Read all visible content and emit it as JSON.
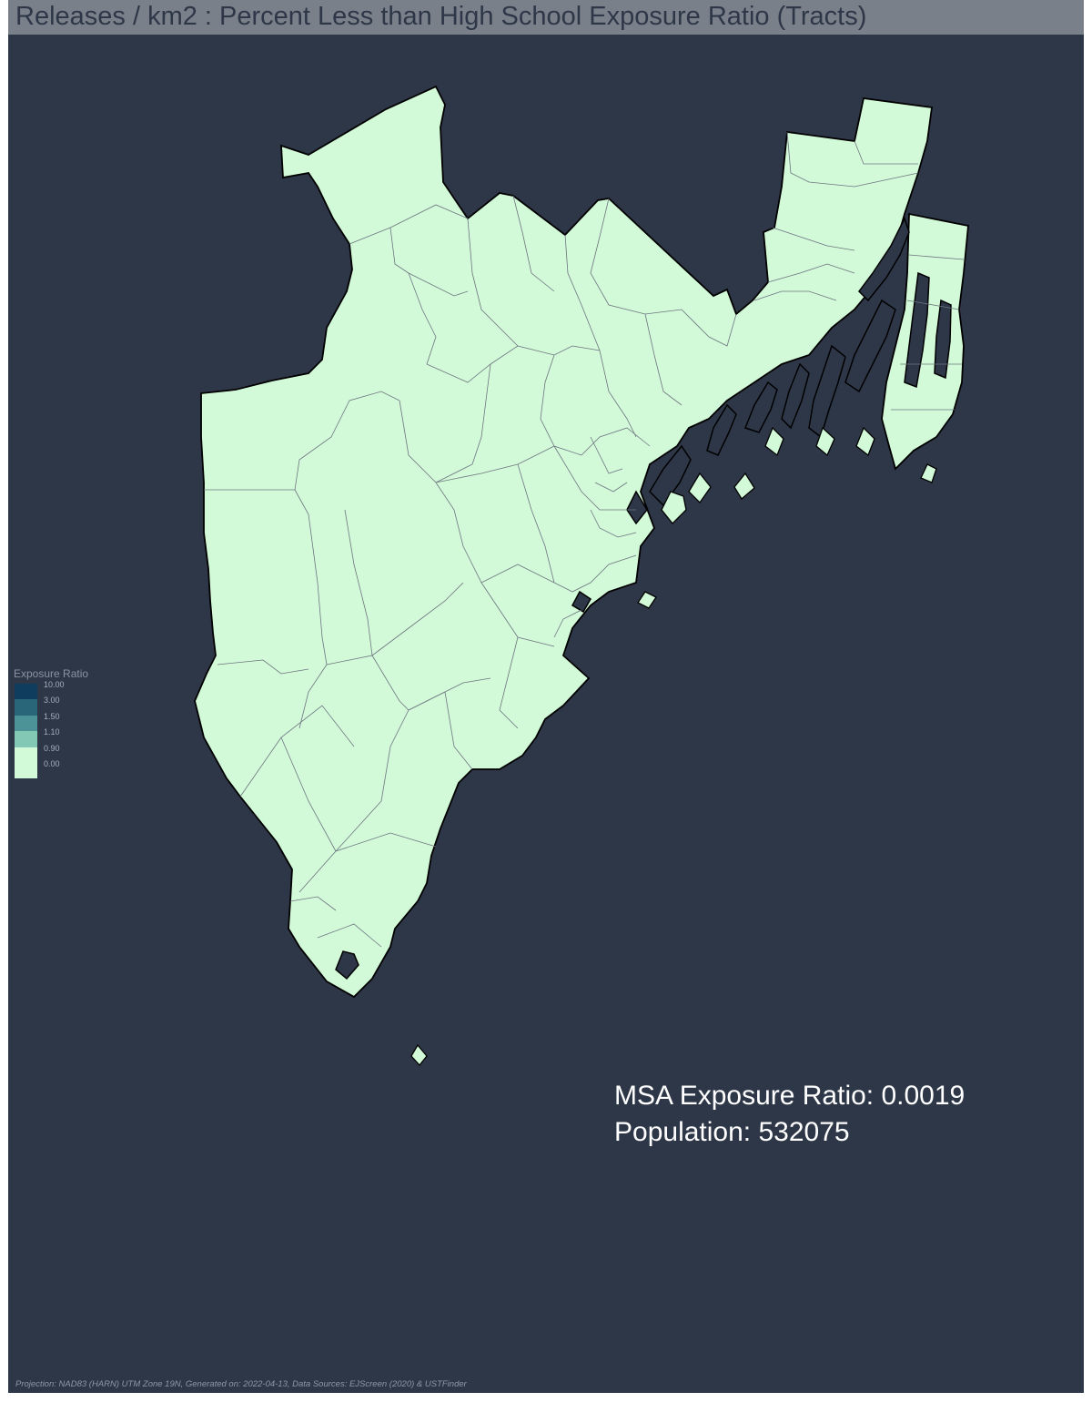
{
  "title": "Releases / km2 : Percent Less than High School Exposure Ratio (Tracts)",
  "legend": {
    "title": "Exposure Ratio",
    "items": [
      {
        "label": "10.00",
        "color": "#0e3d5e"
      },
      {
        "label": "3.00",
        "color": "#29667a"
      },
      {
        "label": "1.50",
        "color": "#4b9396"
      },
      {
        "label": "1.10",
        "color": "#82c8b4"
      },
      {
        "label": "0.90",
        "color": "#d2fad8"
      },
      {
        "label": "0.00",
        "color": "#d2fad8"
      }
    ]
  },
  "stats": {
    "exposure_ratio": "MSA Exposure Ratio: 0.0019",
    "population": "Population: 532075"
  },
  "footer_note": "Projection: NAD83 (HARN) UTM Zone 19N, Generated on: 2022-04-13, Data Sources: EJScreen (2020) & USTFinder",
  "colors": {
    "background": "#2e3748",
    "title_bar": "#7a808a",
    "land_fill": "#d2fad8",
    "tract_border": "#6e7480"
  }
}
